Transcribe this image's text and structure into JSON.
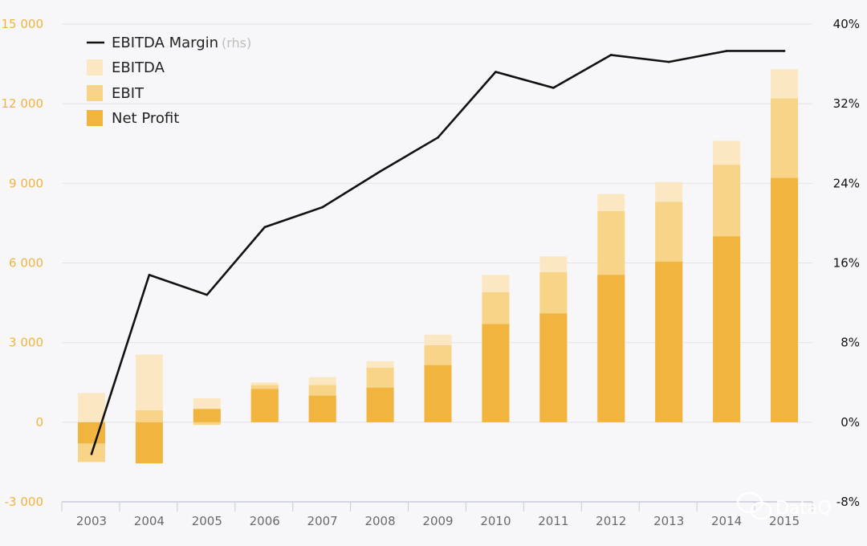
{
  "chart_data": {
    "type": "bar",
    "categories": [
      "2003",
      "2004",
      "2005",
      "2006",
      "2007",
      "2008",
      "2009",
      "2010",
      "2011",
      "2012",
      "2013",
      "2014",
      "2015"
    ],
    "stacking": "overlay",
    "series": [
      {
        "name": "EBITDA",
        "kind": "bar",
        "color": "#fbe8c2",
        "values": [
          1100,
          2550,
          900,
          1500,
          1700,
          2300,
          3300,
          5550,
          6250,
          8600,
          9050,
          10600,
          13300
        ]
      },
      {
        "name": "EBIT",
        "kind": "bar",
        "color": "#f7d488",
        "values": [
          -1500,
          450,
          -100,
          1400,
          1400,
          2050,
          2900,
          4900,
          5650,
          7950,
          8300,
          9700,
          12200
        ]
      },
      {
        "name": "Net Profit",
        "kind": "bar",
        "color": "#f0b43f",
        "values": [
          -800,
          -1550,
          500,
          1250,
          1000,
          1300,
          2150,
          3700,
          4100,
          5550,
          6050,
          7000,
          9200
        ]
      },
      {
        "name": "EBITDA Margin",
        "kind": "line",
        "axis": "right",
        "color": "#111111",
        "values": [
          -3.2,
          14.8,
          12.8,
          19.6,
          21.6,
          25.2,
          28.6,
          35.2,
          33.6,
          36.9,
          36.2,
          37.3,
          37.3
        ]
      }
    ],
    "legend_hint": "(rhs)",
    "y_left": {
      "min": -3000,
      "max": 15000,
      "ticks": [
        -3000,
        0,
        3000,
        6000,
        9000,
        12000,
        15000
      ],
      "tick_labels": [
        "-3 000",
        "0",
        "3 000",
        "6 000",
        "9 000",
        "12 000",
        "15 000"
      ]
    },
    "y_right": {
      "min": -8,
      "max": 40,
      "ticks": [
        -8,
        0,
        8,
        16,
        24,
        32,
        40
      ],
      "tick_labels": [
        "-8%",
        "0%",
        "8%",
        "16%",
        "24%",
        "32%",
        "40%"
      ]
    },
    "grid": true,
    "legend": "top-left",
    "title": "",
    "xlabel": "",
    "ylabel": ""
  },
  "watermark": {
    "text": "DataQ"
  }
}
